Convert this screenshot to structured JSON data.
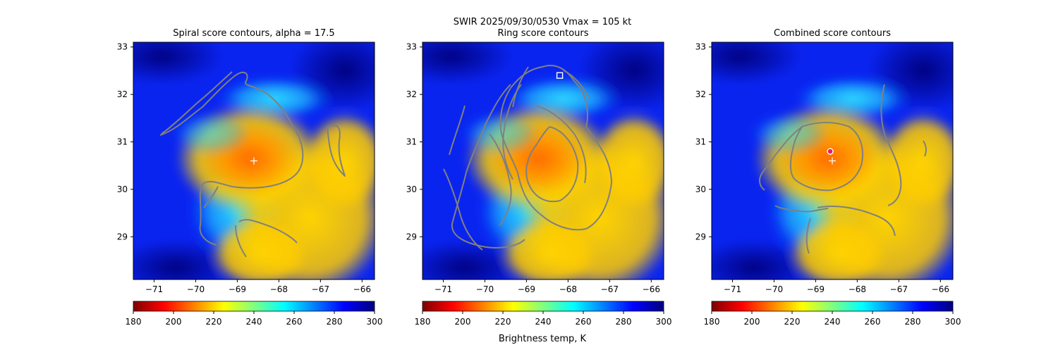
{
  "figure": {
    "suptitle": "SWIR  2025/09/30/0530    Vmax = 105 kt",
    "colorbar_label": "Brightness temp, K"
  },
  "colormap": {
    "name": "jet_r",
    "stops": [
      "#7f0000",
      "#ff0000",
      "#ff8000",
      "#ffff00",
      "#80ff80",
      "#00ffff",
      "#0080ff",
      "#0000ff",
      "#00007f"
    ]
  },
  "chart_data": [
    {
      "type": "heatmap",
      "title": "Spiral score contours, alpha = 17.5",
      "xlim": [
        -71.5,
        -65.7
      ],
      "ylim": [
        28.1,
        33.1
      ],
      "xticks": [
        -71,
        -70,
        -69,
        -68,
        -67,
        -66
      ],
      "yticks": [
        29,
        30,
        31,
        32,
        33
      ],
      "colorbar": {
        "range": [
          180,
          300
        ],
        "ticks": [
          180,
          200,
          220,
          240,
          260,
          280,
          300
        ]
      },
      "contour_color": "#808080",
      "markers": [
        {
          "type": "plus",
          "lon": -68.6,
          "lat": 30.6,
          "color": "#ffffff"
        }
      ]
    },
    {
      "type": "heatmap",
      "title": "Ring score contours",
      "xlim": [
        -71.5,
        -65.7
      ],
      "ylim": [
        28.1,
        33.1
      ],
      "xticks": [
        -71,
        -70,
        -69,
        -68,
        -67,
        -66
      ],
      "yticks": [
        29,
        30,
        31,
        32,
        33
      ],
      "colorbar": {
        "range": [
          180,
          300
        ],
        "ticks": [
          180,
          200,
          220,
          240,
          260,
          280,
          300
        ]
      },
      "contour_color": "#808080",
      "markers": [
        {
          "type": "square",
          "lon": -68.2,
          "lat": 32.4,
          "color": "#ffffff"
        }
      ]
    },
    {
      "type": "heatmap",
      "title": "Combined score contours",
      "xlim": [
        -71.5,
        -65.7
      ],
      "ylim": [
        28.1,
        33.1
      ],
      "xticks": [
        -71,
        -70,
        -69,
        -68,
        -67,
        -66
      ],
      "yticks": [
        29,
        30,
        31,
        32,
        33
      ],
      "colorbar": {
        "range": [
          180,
          300
        ],
        "ticks": [
          180,
          200,
          220,
          240,
          260,
          280,
          300
        ]
      },
      "contour_color": "#808080",
      "markers": [
        {
          "type": "plus",
          "lon": -68.6,
          "lat": 30.6,
          "color": "#ffffff"
        },
        {
          "type": "circle",
          "lon": -68.65,
          "lat": 30.8,
          "color": "#e0206a"
        }
      ]
    }
  ]
}
